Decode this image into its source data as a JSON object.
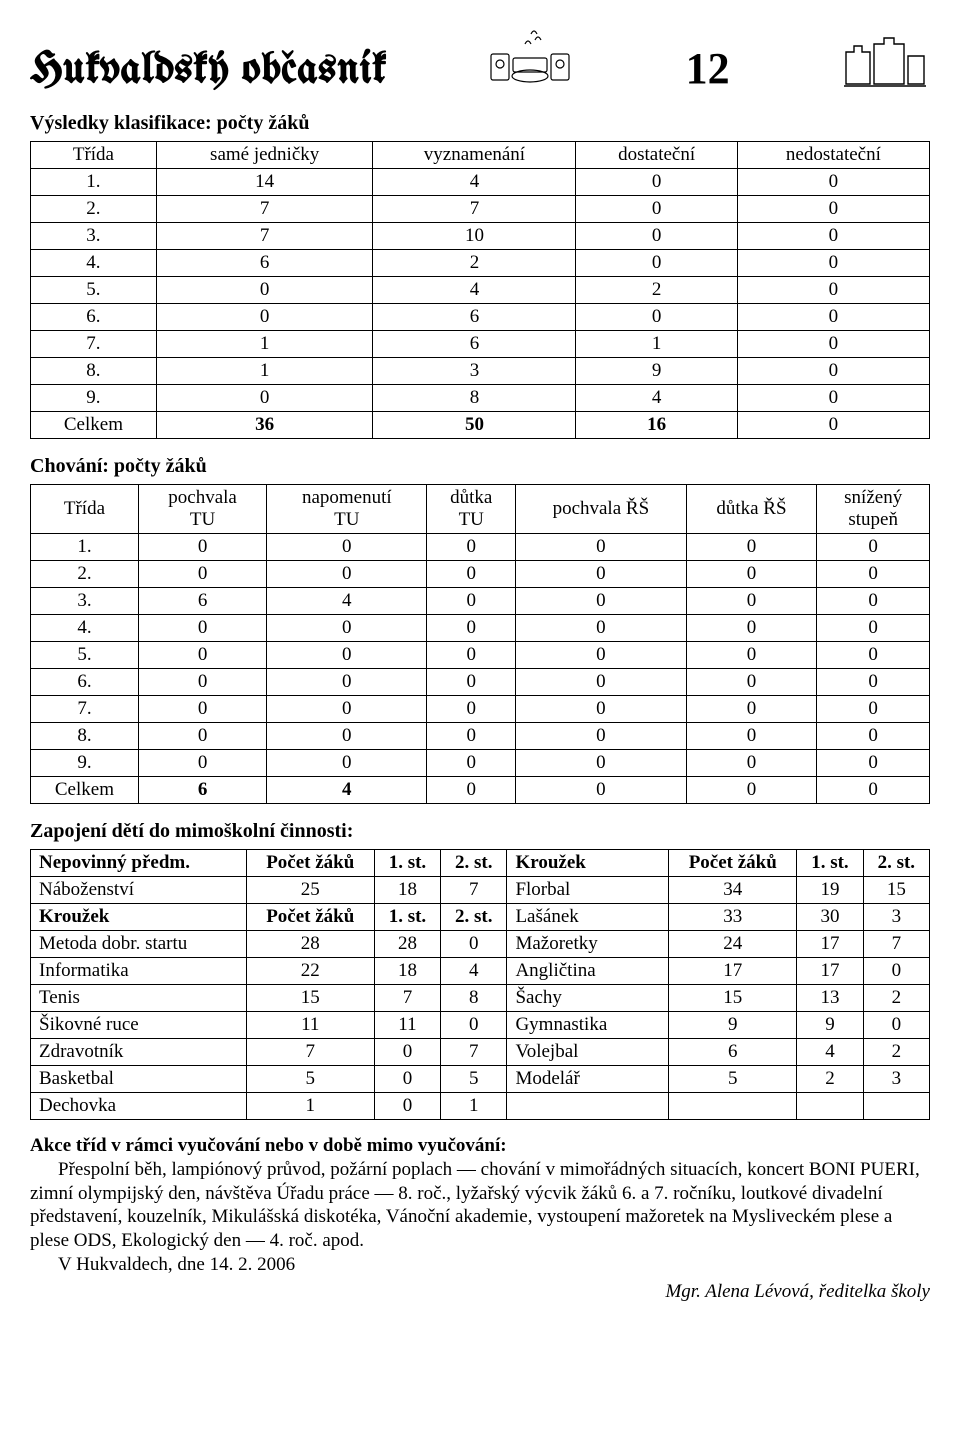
{
  "header": {
    "publication": "Hukvaldský občasník",
    "pageNumber": "12"
  },
  "section1": {
    "title": "Výsledky klasifikace: počty žáků",
    "columns": [
      "Třída",
      "samé jedničky",
      "vyznamenání",
      "dostateční",
      "nedostateční"
    ],
    "rows": [
      [
        "1.",
        "14",
        "4",
        "0",
        "0"
      ],
      [
        "2.",
        "7",
        "7",
        "0",
        "0"
      ],
      [
        "3.",
        "7",
        "10",
        "0",
        "0"
      ],
      [
        "4.",
        "6",
        "2",
        "0",
        "0"
      ],
      [
        "5.",
        "0",
        "4",
        "2",
        "0"
      ],
      [
        "6.",
        "0",
        "6",
        "0",
        "0"
      ],
      [
        "7.",
        "1",
        "6",
        "1",
        "0"
      ],
      [
        "8.",
        "1",
        "3",
        "9",
        "0"
      ],
      [
        "9.",
        "0",
        "8",
        "4",
        "0"
      ]
    ],
    "totalRow": [
      "Celkem",
      "36",
      "50",
      "16",
      "0"
    ]
  },
  "section2": {
    "title": "Chování: počty žáků",
    "columns": [
      "Třída",
      "pochvala TU",
      "napomenutí TU",
      "důtka TU",
      "pochvala ŘŠ",
      "důtka ŘŠ",
      "snížený stupeň"
    ],
    "rows": [
      [
        "1.",
        "0",
        "0",
        "0",
        "0",
        "0",
        "0"
      ],
      [
        "2.",
        "0",
        "0",
        "0",
        "0",
        "0",
        "0"
      ],
      [
        "3.",
        "6",
        "4",
        "0",
        "0",
        "0",
        "0"
      ],
      [
        "4.",
        "0",
        "0",
        "0",
        "0",
        "0",
        "0"
      ],
      [
        "5.",
        "0",
        "0",
        "0",
        "0",
        "0",
        "0"
      ],
      [
        "6.",
        "0",
        "0",
        "0",
        "0",
        "0",
        "0"
      ],
      [
        "7.",
        "0",
        "0",
        "0",
        "0",
        "0",
        "0"
      ],
      [
        "8.",
        "0",
        "0",
        "0",
        "0",
        "0",
        "0"
      ],
      [
        "9.",
        "0",
        "0",
        "0",
        "0",
        "0",
        "0"
      ]
    ],
    "totalRow": [
      "Celkem",
      "6",
      "4",
      "0",
      "0",
      "0",
      "0"
    ]
  },
  "section3": {
    "title": "Zapojení dětí do mimoškolní činnosti:",
    "leftHeader1": [
      "Nepovinný předm.",
      "Počet žáků",
      "1. st.",
      "2. st."
    ],
    "rightHeader1": [
      "Kroužek",
      "Počet žáků",
      "1. st.",
      "2. st."
    ],
    "row_nabozenstvi": [
      "Náboženství",
      "25",
      "18",
      "7"
    ],
    "row_florbal": [
      "Florbal",
      "34",
      "19",
      "15"
    ],
    "leftHeader2": [
      "Kroužek",
      "Počet žáků",
      "1. st.",
      "2. st."
    ],
    "row_lasanek": [
      "Lašánek",
      "33",
      "30",
      "3"
    ],
    "rowsRest": [
      [
        "Metoda dobr. startu",
        "28",
        "28",
        "0",
        "Mažoretky",
        "24",
        "17",
        "7"
      ],
      [
        "Informatika",
        "22",
        "18",
        "4",
        "Angličtina",
        "17",
        "17",
        "0"
      ],
      [
        "Tenis",
        "15",
        "7",
        "8",
        "Šachy",
        "15",
        "13",
        "2"
      ],
      [
        "Šikovné ruce",
        "11",
        "11",
        "0",
        "Gymnastika",
        "9",
        "9",
        "0"
      ],
      [
        "Zdravotník",
        "7",
        "0",
        "7",
        "Volejbal",
        "6",
        "4",
        "2"
      ],
      [
        "Basketbal",
        "5",
        "0",
        "5",
        "Modelář",
        "5",
        "2",
        "3"
      ],
      [
        "Dechovka",
        "1",
        "0",
        "1",
        "",
        "",
        "",
        ""
      ]
    ]
  },
  "paragraph": {
    "heading": "Akce tříd v rámci vyučování nebo v době mimo vyučování:",
    "body": "Přespolní běh, lampiónový průvod, požární poplach — chování v mimořádných situacích, koncert BONI PUERI, zimní olympijský den, návštěva Úřadu práce — 8. roč., lyžařský výcvik žáků 6. a 7. ročníku, loutkové divadelní představení, kouzelník, Mikulášská diskotéka, Vánoční akademie, vystoupení mažoretek na Mysliveckém plese a plese ODS, Ekologický den — 4. roč. apod.",
    "dateLine": "V Hukvaldech, dne 14. 2. 2006",
    "signature": "Mgr. Alena Lévová, ředitelka školy"
  }
}
